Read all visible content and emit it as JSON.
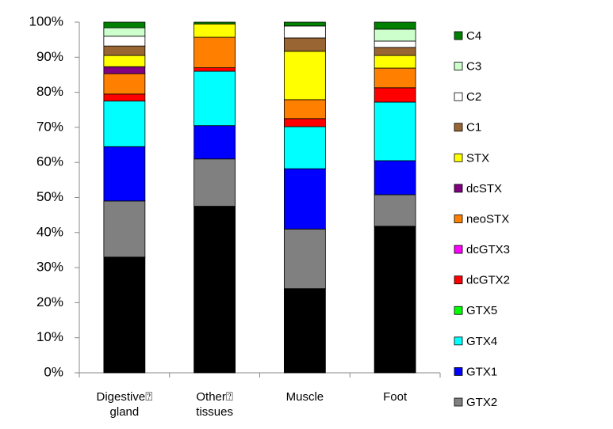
{
  "chart_data": {
    "type": "stacked_bar",
    "categories": [
      "Digestive⍰ gland",
      "Other⍰ tissues",
      "Muscle",
      "Foot"
    ],
    "ylim": [
      0,
      100
    ],
    "yticks": [
      {
        "value": 0,
        "label": "0%"
      },
      {
        "value": 10,
        "label": "10%"
      },
      {
        "value": 20,
        "label": "20%"
      },
      {
        "value": 30,
        "label": "30%"
      },
      {
        "value": 40,
        "label": "40%"
      },
      {
        "value": 50,
        "label": "50%"
      },
      {
        "value": 60,
        "label": "60%"
      },
      {
        "value": 70,
        "label": "70%"
      },
      {
        "value": 80,
        "label": "80%"
      },
      {
        "value": 90,
        "label": "90%"
      },
      {
        "value": 100,
        "label": "100%"
      }
    ],
    "legend": "right",
    "series": [
      {
        "color": "#000000",
        "values": [
          33,
          47.5,
          24,
          41.8
        ]
      },
      {
        "name": "GTX2",
        "color": "#808080",
        "values": [
          16,
          13.5,
          17,
          9
        ]
      },
      {
        "name": "GTX1",
        "color": "#0000ff",
        "values": [
          15.5,
          9.5,
          17.2,
          9.7
        ]
      },
      {
        "name": "GTX4",
        "color": "#00ffff",
        "values": [
          13,
          15.5,
          12,
          16.7
        ]
      },
      {
        "name": "GTX5",
        "color": "#00ff00",
        "values": [
          0,
          0,
          0,
          0
        ]
      },
      {
        "name": "dcGTX2",
        "color": "#ff0000",
        "values": [
          2,
          1,
          2.3,
          4.1
        ]
      },
      {
        "name": "dcGTX3",
        "color": "#ff00ff",
        "values": [
          0,
          0,
          0,
          0
        ]
      },
      {
        "name": "neoSTX",
        "color": "#ff8000",
        "values": [
          5.8,
          8.7,
          5.4,
          5.6
        ]
      },
      {
        "name": "dcSTX",
        "color": "#800080",
        "values": [
          2,
          0,
          0,
          0
        ]
      },
      {
        "name": "STX",
        "color": "#ffff00",
        "values": [
          3.2,
          3.8,
          13.8,
          3.6
        ]
      },
      {
        "name": "C1",
        "color": "#996633",
        "values": [
          2.7,
          0,
          3.8,
          2.3
        ]
      },
      {
        "name": "C2",
        "color": "#ffffff",
        "values": [
          2.8,
          0,
          3.4,
          1.8
        ]
      },
      {
        "name": "C3",
        "color": "#ccffcc",
        "values": [
          2.4,
          0,
          0,
          3.4
        ]
      },
      {
        "name": "C4",
        "color": "#008000",
        "values": [
          1.6,
          0.5,
          1.1,
          2
        ]
      }
    ]
  }
}
